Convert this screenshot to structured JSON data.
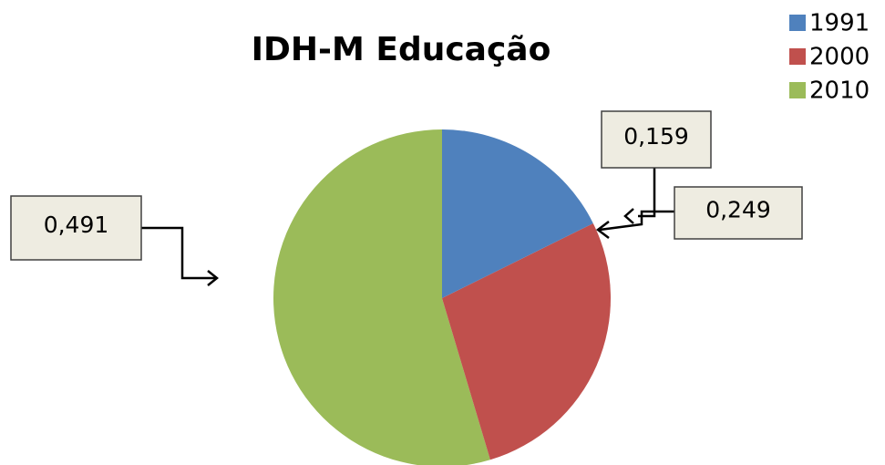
{
  "chart_data": {
    "type": "pie",
    "title": "IDH-M Educação",
    "categories": [
      "1991",
      "2000",
      "2010"
    ],
    "values": [
      0.159,
      0.249,
      0.491
    ],
    "value_labels": [
      "0,159",
      "0,249",
      "0,491"
    ],
    "colors": [
      "#4f81bd",
      "#c0504d",
      "#9bbb59"
    ],
    "legend": "top-right"
  }
}
